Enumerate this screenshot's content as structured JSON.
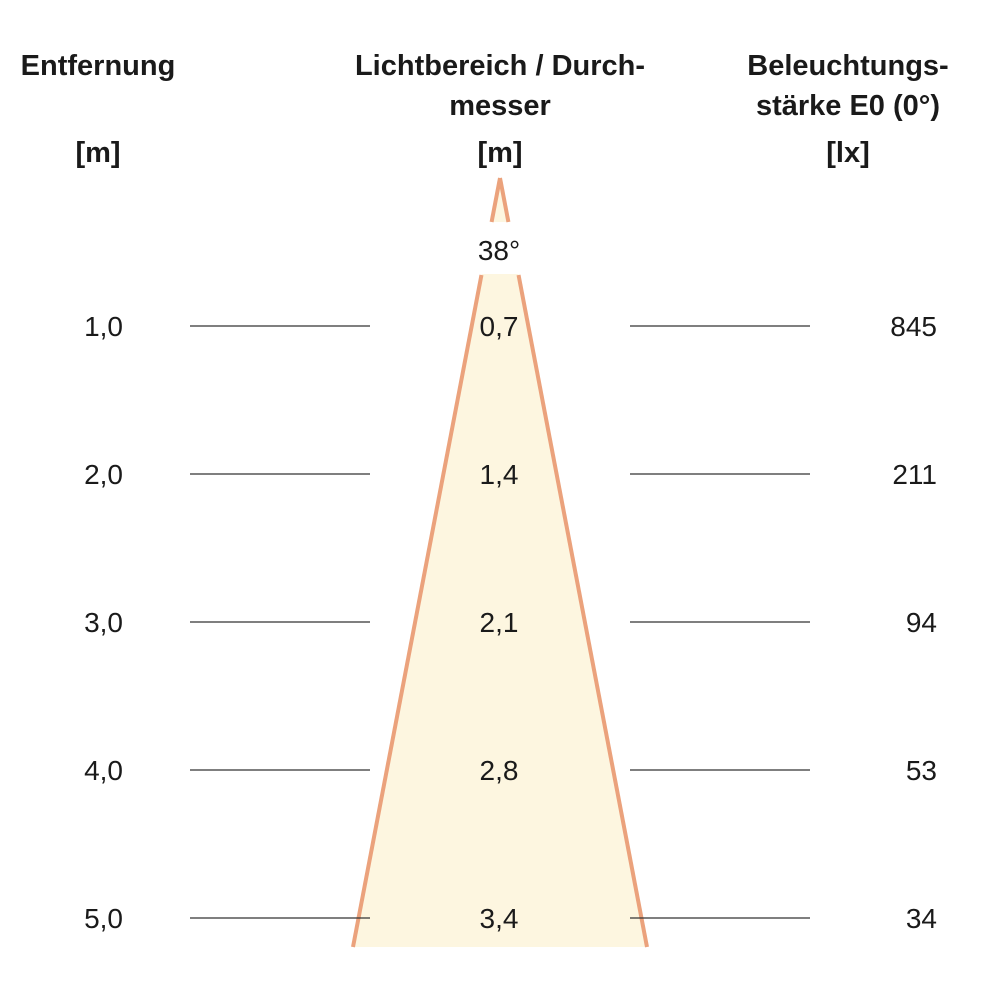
{
  "headers": {
    "distance": {
      "line1": "Entfernung",
      "unit": "[m]"
    },
    "diameter": {
      "line1": "Lichtbereich / Durch-",
      "line2": "messer",
      "unit": "[m]"
    },
    "illuminance": {
      "line1": "Beleuchtungs-",
      "line2": "stärke E0 (0°)",
      "unit": "[lx]"
    }
  },
  "beam_angle": "38°",
  "rows": [
    {
      "distance": "1,0",
      "diameter": "0,7",
      "illuminance": "845"
    },
    {
      "distance": "2,0",
      "diameter": "1,4",
      "illuminance": "211"
    },
    {
      "distance": "3,0",
      "diameter": "2,1",
      "illuminance": "94"
    },
    {
      "distance": "4,0",
      "diameter": "2,8",
      "illuminance": "53"
    },
    {
      "distance": "5,0",
      "diameter": "3,4",
      "illuminance": "34"
    }
  ],
  "colors": {
    "cone_fill": "#fdf6e0",
    "cone_edge": "#eba27c",
    "rule": "#333333"
  }
}
